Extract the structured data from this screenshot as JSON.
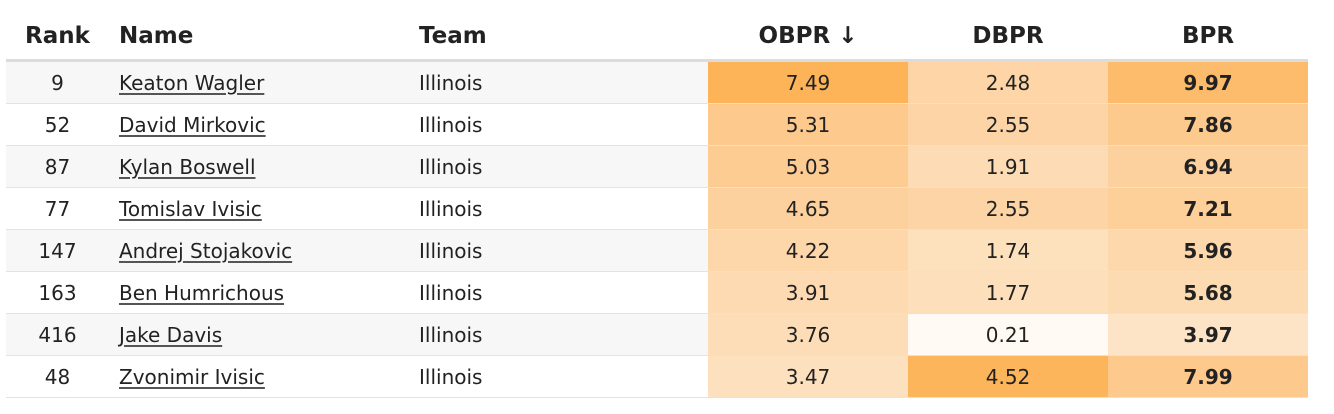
{
  "headers": {
    "rank": "Rank",
    "name": "Name",
    "team": "Team",
    "obpr": "OBPR ↓",
    "dbpr": "DBPR",
    "bpr": "BPR"
  },
  "rows": [
    {
      "rank": "9",
      "name": "Keaton Wagler",
      "team": "Illinois",
      "obpr": "7.49",
      "dbpr": "2.48",
      "bpr": "9.97"
    },
    {
      "rank": "52",
      "name": "David Mirkovic",
      "team": "Illinois",
      "obpr": "5.31",
      "dbpr": "2.55",
      "bpr": "7.86"
    },
    {
      "rank": "87",
      "name": "Kylan Boswell",
      "team": "Illinois",
      "obpr": "5.03",
      "dbpr": "1.91",
      "bpr": "6.94"
    },
    {
      "rank": "77",
      "name": "Tomislav Ivisic",
      "team": "Illinois",
      "obpr": "4.65",
      "dbpr": "2.55",
      "bpr": "7.21"
    },
    {
      "rank": "147",
      "name": "Andrej Stojakovic",
      "team": "Illinois",
      "obpr": "4.22",
      "dbpr": "1.74",
      "bpr": "5.96"
    },
    {
      "rank": "163",
      "name": "Ben Humrichous",
      "team": "Illinois",
      "obpr": "3.91",
      "dbpr": "1.77",
      "bpr": "5.68"
    },
    {
      "rank": "416",
      "name": "Jake Davis",
      "team": "Illinois",
      "obpr": "3.76",
      "dbpr": "0.21",
      "bpr": "3.97"
    },
    {
      "rank": "48",
      "name": "Zvonimir Ivisic",
      "team": "Illinois",
      "obpr": "3.47",
      "dbpr": "4.52",
      "bpr": "7.99"
    }
  ],
  "colors": {
    "obpr": [
      "#fdb358",
      "#fdc98d",
      "#fdcc93",
      "#fdd19d",
      "#fdd6a9",
      "#fddab2",
      "#fdddb7",
      "#fde1bf"
    ],
    "dbpr": [
      "#fdd5a7",
      "#fdd4a5",
      "#fddcb5",
      "#fdd4a5",
      "#fde0bc",
      "#fde0bb",
      "#fffaf3",
      "#fdb55c"
    ],
    "bpr": [
      "#fdbc6b",
      "#fdca8e",
      "#fdd19d",
      "#fdcf99",
      "#fdd8ad",
      "#fddbb2",
      "#fde4c6",
      "#fdc98c"
    ]
  }
}
